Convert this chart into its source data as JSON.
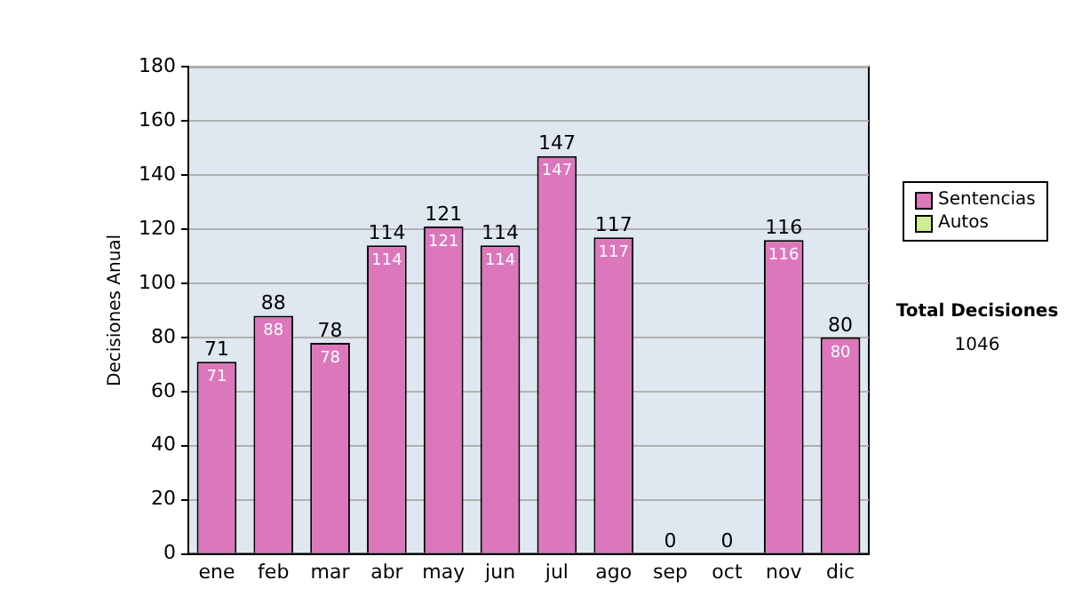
{
  "chart_data": {
    "type": "bar",
    "ylabel": "Decisiones Anual",
    "categories": [
      "ene",
      "feb",
      "mar",
      "abr",
      "may",
      "jun",
      "jul",
      "ago",
      "sep",
      "oct",
      "nov",
      "dic"
    ],
    "series": [
      {
        "name": "Sentencias",
        "color": "#dd77bb",
        "values": [
          71,
          88,
          78,
          114,
          121,
          114,
          147,
          117,
          0,
          0,
          116,
          80
        ],
        "value_labels": [
          "71",
          "88",
          "78",
          "114",
          "121",
          "114",
          "147",
          "117",
          null,
          null,
          "116",
          "80"
        ]
      },
      {
        "name": "Autos",
        "color": "#ccee99",
        "values": [
          0,
          0,
          0,
          0,
          0,
          0,
          0,
          0,
          0,
          0,
          0,
          0
        ]
      }
    ],
    "stacked": true,
    "totals": [
      "71",
      "88",
      "78",
      "114",
      "121",
      "114",
      "147",
      "117",
      "0",
      "0",
      "116",
      "80"
    ],
    "ylim": [
      0,
      180
    ],
    "yticks": [
      0,
      20,
      40,
      60,
      80,
      100,
      120,
      140,
      160,
      180
    ],
    "grid": "y",
    "legend": "right",
    "annotations": [
      "Total Decisiones",
      "1046"
    ]
  }
}
